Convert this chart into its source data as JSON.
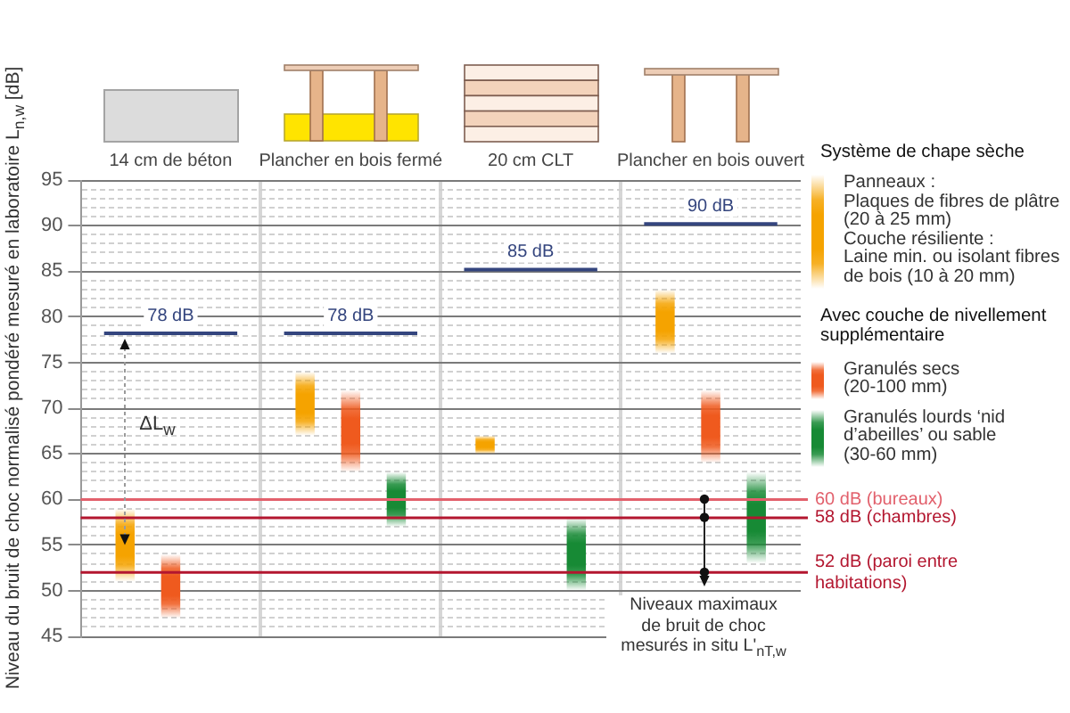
{
  "chart_data": {
    "type": "bar",
    "ylabel": "Niveau du bruit de choc normalisé pondéré mesuré en laboratoire L$_{n,w}$ [dB]",
    "legend_title": "Système de chape sèche",
    "categories": [
      "14 cm de béton",
      "Plancher en bois fermé",
      "20 cm CLT",
      "Plancher en bois ouvert"
    ],
    "series": [
      {
        "name": "Panneaux :\nPlaques de fibres de plâtre\n(20 à 25 mm)\nCouche résiliente :\nLaine min. ou isolant fibres de bois (10 à 20 mm)",
        "color": "#f5a300",
        "base": [
          51,
          67,
          65,
          76
        ],
        "values": [
          8,
          7,
          2,
          7
        ]
      },
      {
        "name": "Granulés secs\n(20-100 mm)",
        "color": "#ef5a1e",
        "base": [
          47,
          63,
          null,
          64
        ],
        "values": [
          7,
          9,
          null,
          8
        ]
      },
      {
        "name": "Granulés lourds ‘nid d’abeilles’ ou sable\n(30-60 mm)",
        "color": "#178a35",
        "base": [
          null,
          57,
          50,
          53
        ],
        "values": [
          null,
          6,
          8,
          10
        ]
      },
      {
        "color": "#34457e",
        "base": [
          78,
          78,
          85,
          90
        ],
        "values": [
          0,
          0,
          0,
          0
        ],
        "value_labels": [
          "78 dB",
          "78 dB",
          "85 dB",
          "90 dB"
        ]
      }
    ],
    "ylim": [
      45,
      95
    ],
    "yticks": [
      45,
      {
        "value": 46,
        "label": null
      },
      {
        "value": 47,
        "label": null
      },
      {
        "value": 48,
        "label": null
      },
      {
        "value": 49,
        "label": null
      },
      50,
      {
        "value": 51,
        "label": null
      },
      {
        "value": 53,
        "label": null
      },
      {
        "value": 54,
        "label": null
      },
      55,
      {
        "value": 56,
        "label": null
      },
      {
        "value": 57,
        "label": null
      },
      {
        "value": 59,
        "label": null
      },
      60,
      {
        "value": 61,
        "label": null
      },
      {
        "value": 62,
        "label": null
      },
      {
        "value": 63,
        "label": null
      },
      {
        "value": 64,
        "label": null
      },
      65,
      {
        "value": 66,
        "label": null
      },
      {
        "value": 67,
        "label": null
      },
      {
        "value": 68,
        "label": null
      },
      {
        "value": 69,
        "label": null
      },
      70,
      {
        "value": 71,
        "label": null
      },
      {
        "value": 72,
        "label": null
      },
      {
        "value": 73,
        "label": null
      },
      {
        "value": 74,
        "label": null
      },
      75,
      {
        "value": 76,
        "label": null
      },
      {
        "value": 77,
        "label": null
      },
      {
        "value": 78,
        "label": null
      },
      {
        "value": 79,
        "label": null
      },
      80,
      {
        "value": 81,
        "label": null
      },
      {
        "value": 82,
        "label": null
      },
      {
        "value": 83,
        "label": null
      },
      {
        "value": 84,
        "label": null
      },
      85,
      {
        "value": 86,
        "label": null
      },
      {
        "value": 87,
        "label": null
      },
      {
        "value": 88,
        "label": null
      },
      {
        "value": 89,
        "label": null
      },
      90,
      {
        "value": 91,
        "label": null
      },
      {
        "value": 92,
        "label": null
      },
      {
        "value": 93,
        "label": null
      },
      {
        "value": 94,
        "label": null
      },
      95
    ],
    "grid": true,
    "legend": "right",
    "ref_lines": [
      {
        "axis": "y",
        "value": 60,
        "label": "60 dB (bureaux)",
        "color": "#e2606c"
      },
      {
        "axis": "y",
        "value": 58,
        "label": "58 dB (chambres)",
        "color": "#b3162f"
      },
      {
        "axis": "y",
        "value": 52,
        "label": "52 dB (paroi entre habitations)",
        "color": "#b3162f"
      }
    ],
    "annotations": [
      "Avec couche de nivellement supplémentaire",
      "ΔL$_{w}$",
      {
        "text": "Niveaux maximaux\nde bruit de choc\nmesurés in situ L'$_{nT,w}$",
        "x": "Plancher en bois ouvert",
        "y": 60
      }
    ]
  }
}
